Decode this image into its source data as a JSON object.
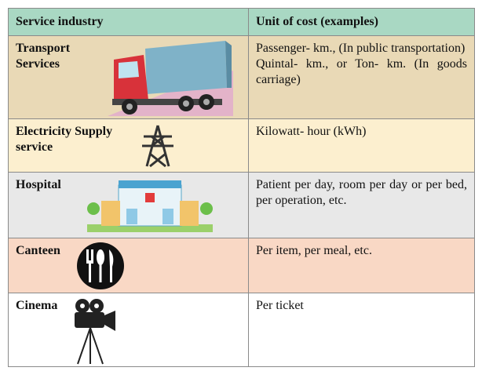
{
  "table": {
    "header": [
      "Service industry",
      "Unit of cost (examples)"
    ],
    "rows": [
      [
        "Transport Services",
        [
          "Passenger- km., (In public transportation)",
          "Quintal- km., or Ton- km. (In goods carriage)"
        ]
      ],
      [
        "Electricity Supply service",
        "Kilowatt- hour (kWh)"
      ],
      [
        "Hospital",
        "Patient per day, room per day or per bed, per operation, etc."
      ],
      [
        "Canteen",
        "Per item, per meal, etc."
      ],
      [
        "Cinema",
        "Per ticket"
      ]
    ]
  }
}
